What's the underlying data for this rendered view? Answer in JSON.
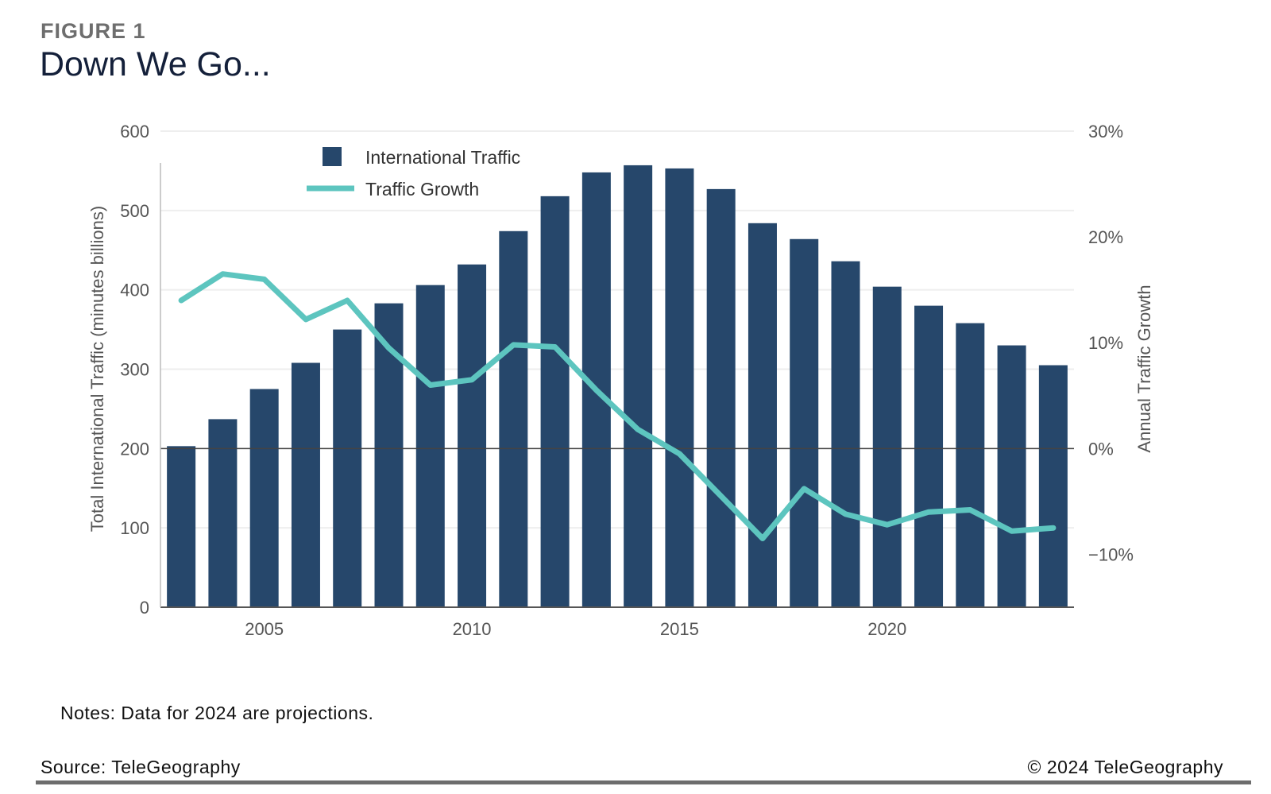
{
  "header": {
    "figure_label": "FIGURE 1",
    "title": "Down We Go..."
  },
  "footer": {
    "notes": "Notes: Data for 2024 are projections.",
    "source": "Source: TeleGeography",
    "copyright": "© 2024 TeleGeography"
  },
  "colors": {
    "bar": "#26476b",
    "line": "#5dc5bf",
    "grid": "#eeeeee",
    "axis": "#555555",
    "tick_text": "#555555"
  },
  "chart_data": {
    "type": "bar",
    "title": "Down We Go...",
    "categories": [
      2003,
      2004,
      2005,
      2006,
      2007,
      2008,
      2009,
      2010,
      2011,
      2012,
      2013,
      2014,
      2015,
      2016,
      2017,
      2018,
      2019,
      2020,
      2021,
      2022,
      2023,
      2024
    ],
    "x_ticks": [
      2005,
      2010,
      2015,
      2020
    ],
    "series": [
      {
        "name": "International Traffic",
        "kind": "bar",
        "axis": "left",
        "values": [
          203,
          237,
          275,
          308,
          350,
          383,
          406,
          432,
          474,
          518,
          548,
          557,
          553,
          527,
          484,
          464,
          436,
          404,
          380,
          358,
          330,
          305
        ]
      },
      {
        "name": "Traffic Growth",
        "kind": "line",
        "axis": "right",
        "values": [
          14.0,
          16.5,
          16.0,
          12.2,
          14.0,
          9.5,
          6.0,
          6.5,
          9.8,
          9.6,
          5.5,
          1.8,
          -0.5,
          -4.5,
          -8.5,
          -3.8,
          -6.2,
          -7.2,
          -6.0,
          -5.8,
          -7.8,
          -7.5
        ]
      }
    ],
    "ylabel": "Total International Traffic (minutes billions)",
    "ylim": [
      0,
      600
    ],
    "y_ticks": [
      0,
      100,
      200,
      300,
      400,
      500,
      600
    ],
    "y2label": "Annual Traffic Growth",
    "y2lim": [
      -15,
      30
    ],
    "y2_ticks": [
      {
        "value": 30,
        "label": "30%"
      },
      {
        "value": 20,
        "label": "20%"
      },
      {
        "value": 10,
        "label": "10%"
      },
      {
        "value": 0,
        "label": "0%"
      },
      {
        "value": -10,
        "label": "−10%"
      }
    ],
    "legend": [
      {
        "label": "International Traffic"
      },
      {
        "label": "Traffic Growth"
      }
    ],
    "legend_placement": "top-left",
    "grid": true
  }
}
